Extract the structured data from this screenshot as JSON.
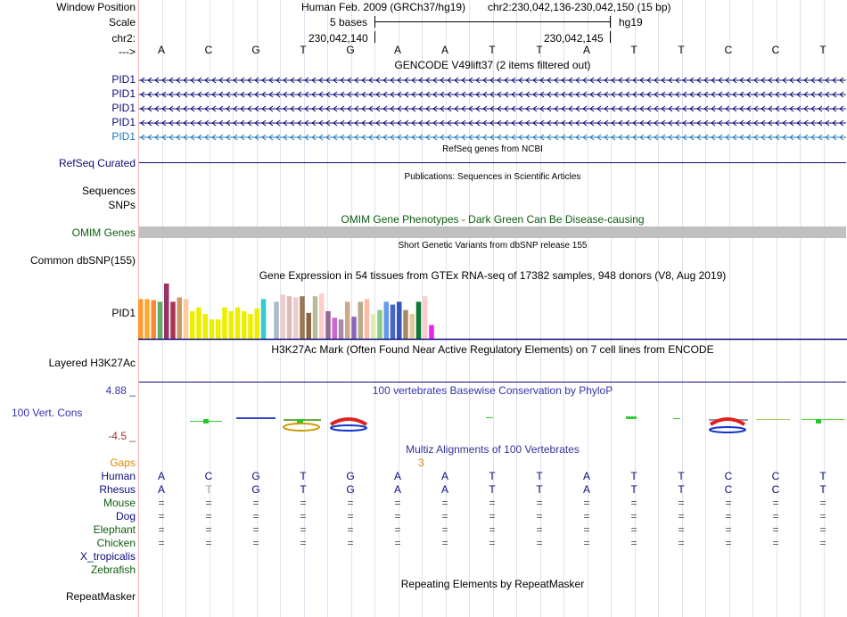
{
  "header": {
    "window_position_label": "Window Position",
    "scale_label": "Scale",
    "chrom_label": "chr2:",
    "arrow_label": "--->",
    "assembly_title": "Human Feb. 2009 (GRCh37/hg19)",
    "position_text": "chr2:230,042,136-230,042,150 (15 bp)",
    "scale_text": "5 bases",
    "db_text": "hg19",
    "coord_left": "230,042,140",
    "coord_right": "230,042,145"
  },
  "dna": {
    "bases": [
      "A",
      "C",
      "G",
      "T",
      "G",
      "A",
      "A",
      "T",
      "T",
      "A",
      "T",
      "T",
      "C",
      "C",
      "T"
    ]
  },
  "gencode": {
    "title": "GENCODE V49lift37 (2 items filtered out)",
    "genes": [
      {
        "label": "PID1",
        "color": "#0c0c78"
      },
      {
        "label": "PID1",
        "color": "#0c0c78"
      },
      {
        "label": "PID1",
        "color": "#0c0c78"
      },
      {
        "label": "PID1",
        "color": "#0c0c78"
      },
      {
        "label": "PID1",
        "color": "#1f78b4"
      }
    ]
  },
  "refseq": {
    "title": "RefSeq genes from NCBI",
    "label": "RefSeq Curated"
  },
  "publications": {
    "title": "Publications: Sequences in Scientific Articles",
    "label_seq": "Sequences",
    "label_snp": "SNPs"
  },
  "omim": {
    "title": "OMIM Gene Phenotypes - Dark Green Can Be Disease-causing",
    "label": "OMIM Genes",
    "color": "#0d5d0d"
  },
  "dbsnp": {
    "title": "Short Genetic Variants from dbSNP release 155",
    "label": "Common dbSNP(155)"
  },
  "gtex": {
    "title": "Gene Expression in 54 tissues from GTEx RNA-seq of 17382 samples, 948 donors (V8, Aug 2019)",
    "label": "PID1",
    "bars": [
      {
        "v": 0.72,
        "c": "#ff9933"
      },
      {
        "v": 0.72,
        "c": "#ffaa33"
      },
      {
        "v": 0.7,
        "c": "#ff8833"
      },
      {
        "v": 0.67,
        "c": "#66aa66"
      },
      {
        "v": 1.0,
        "c": "#993366"
      },
      {
        "v": 0.67,
        "c": "#aa3355"
      },
      {
        "v": 0.75,
        "c": "#cc9966"
      },
      {
        "v": 0.72,
        "c": "#ffcc99"
      },
      {
        "v": 0.5,
        "c": "#eeee00"
      },
      {
        "v": 0.57,
        "c": "#eeee00"
      },
      {
        "v": 0.45,
        "c": "#eeee00"
      },
      {
        "v": 0.35,
        "c": "#eeee00"
      },
      {
        "v": 0.35,
        "c": "#eeee00"
      },
      {
        "v": 0.57,
        "c": "#eeee00"
      },
      {
        "v": 0.5,
        "c": "#eeee00"
      },
      {
        "v": 0.57,
        "c": "#eeee00"
      },
      {
        "v": 0.5,
        "c": "#eeee00"
      },
      {
        "v": 0.45,
        "c": "#eeee00"
      },
      {
        "v": 0.55,
        "c": "#eeee00"
      },
      {
        "v": 0.72,
        "c": "#33cccc"
      },
      {
        "v": 0.0,
        "c": "#ffffff"
      },
      {
        "v": 0.67,
        "c": "#aabbcc"
      },
      {
        "v": 0.8,
        "c": "#eecccc"
      },
      {
        "v": 0.77,
        "c": "#ddbbbb"
      },
      {
        "v": 0.75,
        "c": "#eecccc"
      },
      {
        "v": 0.77,
        "c": "#997755"
      },
      {
        "v": 0.47,
        "c": "#886644"
      },
      {
        "v": 0.77,
        "c": "#bbbb99"
      },
      {
        "v": 0.82,
        "c": "#ffcccc"
      },
      {
        "v": 0.5,
        "c": "#996699"
      },
      {
        "v": 0.38,
        "c": "#cc66cc"
      },
      {
        "v": 0.35,
        "c": "#aa88aa"
      },
      {
        "v": 0.67,
        "c": "#ccaa88"
      },
      {
        "v": 0.4,
        "c": "#8866bb"
      },
      {
        "v": 0.67,
        "c": "#bbaa88"
      },
      {
        "v": 0.72,
        "c": "#ffbbaa"
      },
      {
        "v": 0.45,
        "c": "#ddeeaa"
      },
      {
        "v": 0.52,
        "c": "#88cc88"
      },
      {
        "v": 0.67,
        "c": "#6699ee"
      },
      {
        "v": 0.62,
        "c": "#4466cc"
      },
      {
        "v": 0.67,
        "c": "#3355bb"
      },
      {
        "v": 0.52,
        "c": "#aa8866"
      },
      {
        "v": 0.45,
        "c": "#ddcc99"
      },
      {
        "v": 0.67,
        "c": "#117733"
      },
      {
        "v": 0.77,
        "c": "#ffcccc"
      },
      {
        "v": 0.25,
        "c": "#ee22ee"
      }
    ]
  },
  "h3k27ac": {
    "title": "H3K27Ac Mark (Often Found Near Active Regulatory Elements) on 7 cell lines from ENCODE",
    "label": "Layered H3K27Ac"
  },
  "phylop": {
    "title": "100 vertebrates Basewise Conservation by PhyloP",
    "label": "100 Vert. Cons",
    "max": "4.88 _",
    "min": "-4.5 _"
  },
  "multiz": {
    "title": "Multiz Alignments of 100 Vertebrates",
    "gaps_label": "Gaps",
    "gaps_value": "3",
    "species": [
      {
        "name": "Human",
        "row": [
          "A",
          "C",
          "G",
          "T",
          "G",
          "A",
          "A",
          "T",
          "T",
          "A",
          "T",
          "T",
          "C",
          "C",
          "T"
        ]
      },
      {
        "name": "Rhesus",
        "row": [
          "A",
          "T",
          "G",
          "T",
          "G",
          "A",
          "A",
          "T",
          "T",
          "A",
          "T",
          "T",
          "C",
          "C",
          "T"
        ]
      },
      {
        "name": "Mouse",
        "row": [
          "=",
          "=",
          "=",
          "=",
          "=",
          "=",
          "=",
          "=",
          "=",
          "=",
          "=",
          "=",
          "=",
          "=",
          "="
        ]
      },
      {
        "name": "Dog",
        "row": [
          "=",
          "=",
          "=",
          "=",
          "=",
          "=",
          "=",
          "=",
          "=",
          "=",
          "=",
          "=",
          "=",
          "=",
          "="
        ]
      },
      {
        "name": "Elephant",
        "row": [
          "=",
          "=",
          "=",
          "=",
          "=",
          "=",
          "=",
          "=",
          "=",
          "=",
          "=",
          "=",
          "=",
          "=",
          "="
        ]
      },
      {
        "name": "Chicken",
        "row": [
          "=",
          "=",
          "=",
          "=",
          "=",
          "=",
          "=",
          "=",
          "=",
          "=",
          "=",
          "=",
          "=",
          "=",
          "="
        ]
      },
      {
        "name": "X_tropicalis",
        "row": []
      },
      {
        "name": "Zebrafish",
        "row": []
      }
    ]
  },
  "repeatmasker": {
    "title": "Repeating Elements by RepeatMasker",
    "label": "RepeatMasker"
  }
}
